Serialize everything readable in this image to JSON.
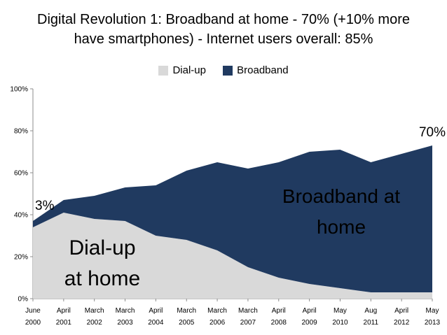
{
  "colors": {
    "dialup": "#d9d9d9",
    "broadband": "#203a60",
    "broadband_text": "#ffffff"
  },
  "chart_data": {
    "type": "area",
    "stacked": true,
    "title_line1": "Digital Revolution 1: Broadband at home - 70% (+10% more",
    "title_line2": "have smartphones) - Internet users overall: 85%",
    "legend": [
      "Dial-up",
      "Broadband"
    ],
    "legend_position": "top-center",
    "categories": [
      [
        "June",
        "2000"
      ],
      [
        "April",
        "2001"
      ],
      [
        "March",
        "2002"
      ],
      [
        "March",
        "2003"
      ],
      [
        "April",
        "2004"
      ],
      [
        "March",
        "2005"
      ],
      [
        "March",
        "2006"
      ],
      [
        "March",
        "2007"
      ],
      [
        "April",
        "2008"
      ],
      [
        "April",
        "2009"
      ],
      [
        "May",
        "2010"
      ],
      [
        "Aug",
        "2011"
      ],
      [
        "April",
        "2012"
      ],
      [
        "May",
        "2013"
      ]
    ],
    "series": [
      {
        "name": "Dial-up",
        "values": [
          34,
          41,
          38,
          37,
          30,
          28,
          23,
          15,
          10,
          7,
          5,
          3,
          3,
          3
        ]
      },
      {
        "name": "Broadband",
        "values": [
          3,
          6,
          11,
          16,
          24,
          33,
          42,
          47,
          55,
          63,
          66,
          62,
          66,
          70
        ]
      }
    ],
    "ylim": [
      0,
      100
    ],
    "yticks": [
      "0%",
      "20%",
      "40%",
      "60%",
      "80%",
      "100%"
    ],
    "annotations": {
      "start_broadband": "3%",
      "end_broadband": "70%",
      "dialup_line1": "Dial-up",
      "dialup_line2": "at home",
      "broadband_line1": "Broadband at",
      "broadband_line2": "home"
    }
  }
}
